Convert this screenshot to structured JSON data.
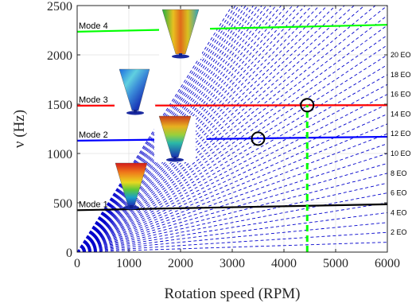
{
  "chart_data": {
    "type": "line",
    "xlabel": "Rotation speed (RPM)",
    "ylabel": "ν (Hz)",
    "xlim": [
      0,
      6000
    ],
    "ylim": [
      0,
      2500
    ],
    "xticks": [
      0,
      1000,
      2000,
      3000,
      4000,
      5000,
      6000
    ],
    "yticks": [
      0,
      500,
      1000,
      1500,
      2000,
      2500
    ],
    "grid": true,
    "colors": {
      "mode_1": "#000000",
      "mode_2": "#0000ff",
      "mode_3": "#ff0000",
      "mode_4": "#00ff00",
      "engine_orders": "#0000cc",
      "operating_line": "#00ff00",
      "markers": "#000000"
    },
    "modes": [
      {
        "name": "Mode 1",
        "x": [
          0,
          6000
        ],
        "y": [
          425,
          485
        ]
      },
      {
        "name": "Mode 2",
        "x": [
          0,
          6000
        ],
        "y": [
          1130,
          1170
        ]
      },
      {
        "name": "Mode 3",
        "x": [
          0,
          6000
        ],
        "y": [
          1485,
          1490
        ]
      },
      {
        "name": "Mode 4",
        "x": [
          0,
          6000
        ],
        "y": [
          2235,
          2305
        ]
      }
    ],
    "engine_orders": {
      "orders": [
        1,
        2,
        3,
        4,
        5,
        6,
        7,
        8,
        9,
        10,
        11,
        12,
        13,
        14,
        15,
        16,
        17,
        18,
        19,
        20,
        21,
        22,
        23,
        24,
        25,
        26,
        27,
        28,
        29,
        30,
        31,
        32,
        33,
        34,
        35,
        36,
        37,
        38,
        39,
        40,
        41,
        42,
        43,
        44,
        45,
        46,
        47,
        48,
        49,
        50
      ],
      "labels": [
        "2 EO",
        "4 EO",
        "6 EO",
        "8 EO",
        "10 EO",
        "12 EO",
        "14 EO",
        "16 EO",
        "18 EO",
        "20 EO"
      ],
      "label_orders": [
        2,
        4,
        6,
        8,
        10,
        12,
        14,
        16,
        18,
        20
      ],
      "style": "dashed"
    },
    "operating_speed": {
      "x": 4450,
      "y_range": [
        0,
        1490
      ],
      "style": "dashed"
    },
    "markers": [
      {
        "x": 3500,
        "y": 1150
      },
      {
        "x": 4450,
        "y": 1490
      }
    ],
    "mode_shape_icons": [
      "mode-1-shape-icon",
      "mode-2-shape-icon",
      "mode-3-shape-icon",
      "mode-4-shape-icon"
    ]
  }
}
